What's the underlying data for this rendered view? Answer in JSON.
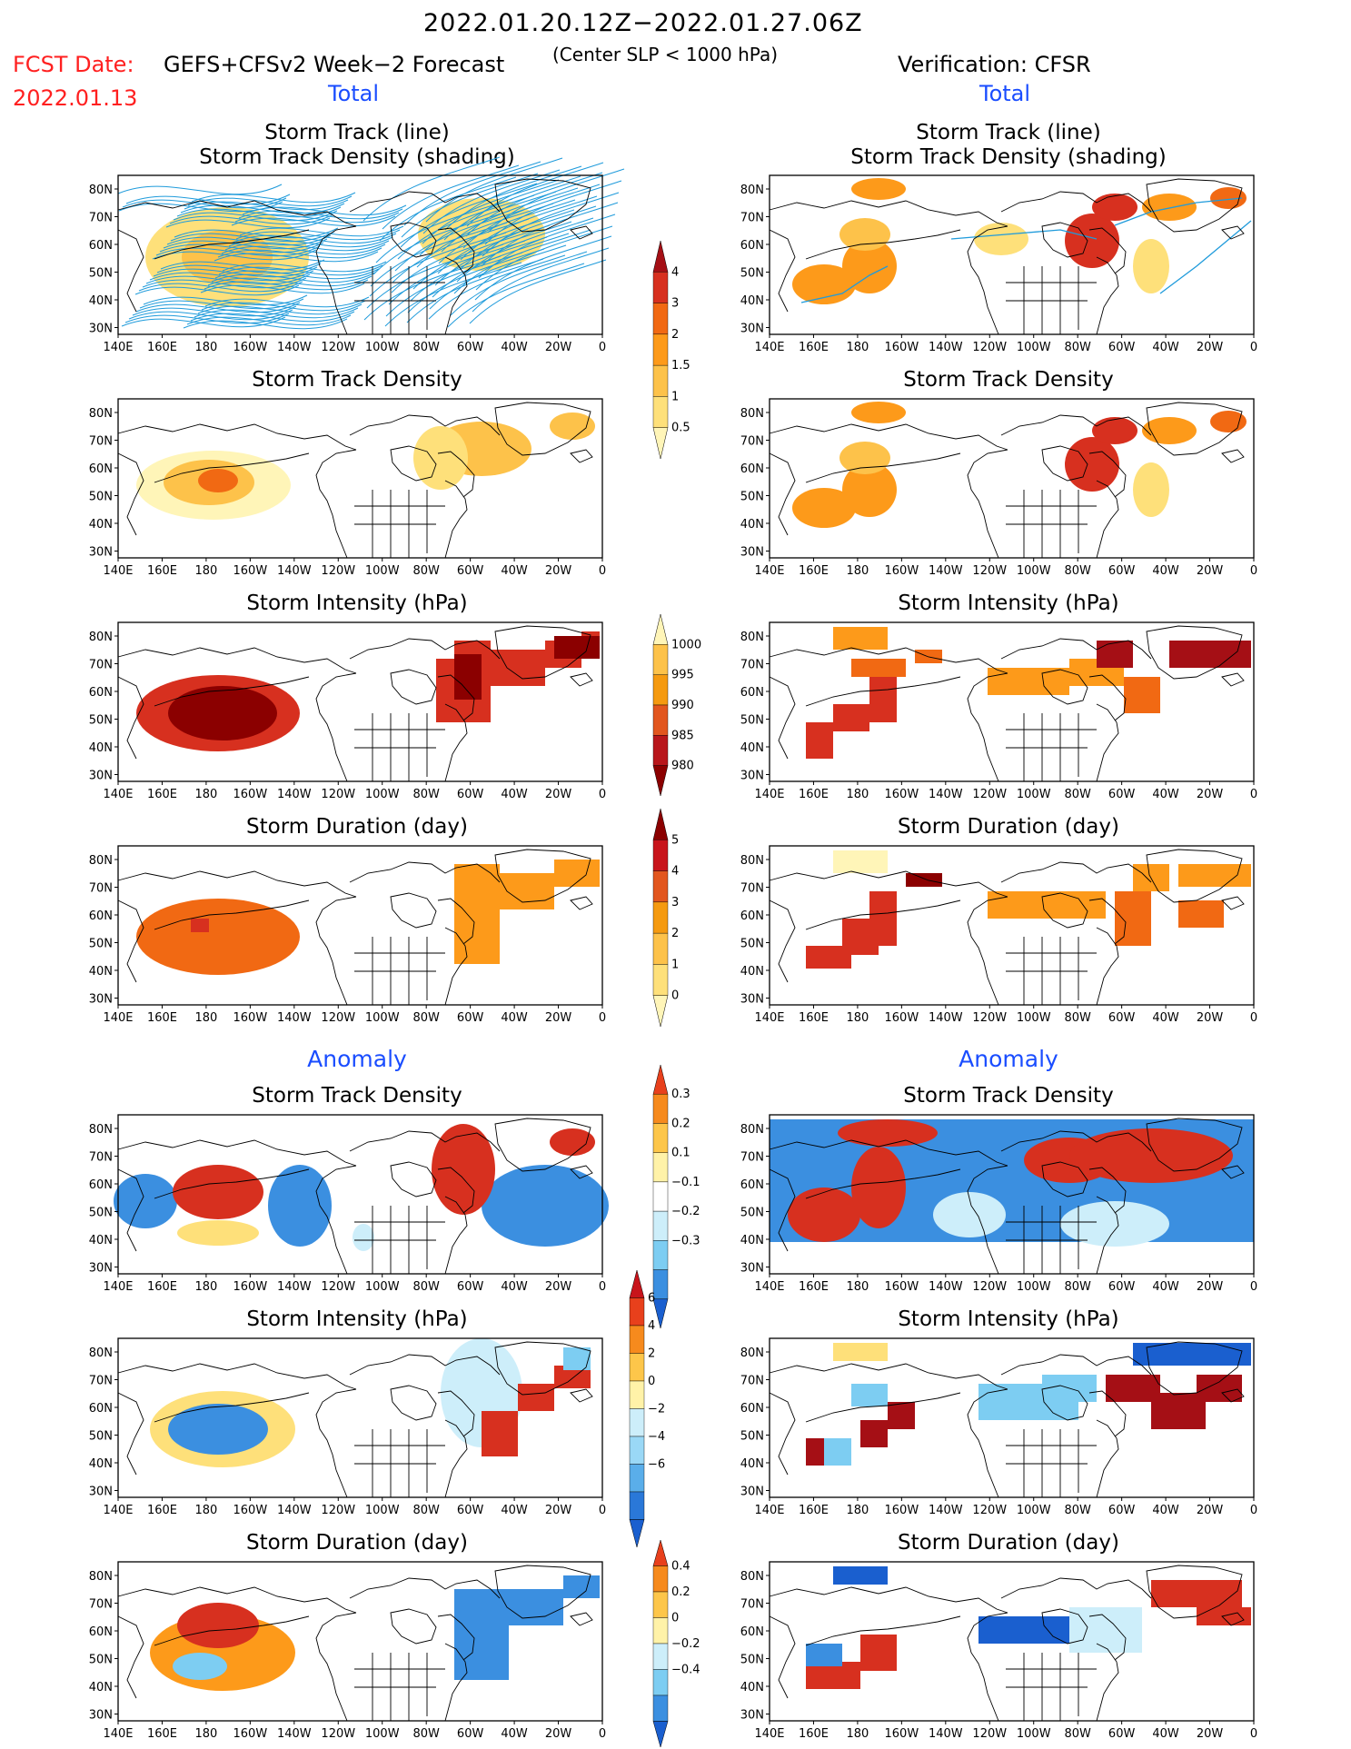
{
  "header": {
    "period": "2022.01.20.12Z−2022.01.27.06Z",
    "fcst_label": "FCST Date:",
    "fcst_date": "2022.01.13",
    "model": "GEFS+CFSv2 Week−2 Forecast",
    "criterion": "(Center SLP < 1000 hPa)",
    "verification": "Verification: CFSR"
  },
  "sections": {
    "total": "Total",
    "anomaly": "Anomaly"
  },
  "panel_titles": {
    "track": [
      "Storm Track (line)",
      "Storm Track Density (shading)"
    ],
    "density": "Storm Track Density",
    "intensity": "Storm Intensity (hPa)",
    "duration": "Storm Duration (day)"
  },
  "axes": {
    "lat_labels": [
      "80N",
      "70N",
      "60N",
      "50N",
      "40N",
      "30N"
    ],
    "lon_labels": [
      "140E",
      "160E",
      "180",
      "160W",
      "140W",
      "120W",
      "100W",
      "80W",
      "60W",
      "40W",
      "20W",
      "0"
    ]
  },
  "colorbars": {
    "density_total": {
      "labels": [
        "4",
        "3",
        "2",
        "1.5",
        "1",
        "0.5"
      ],
      "colors": [
        "#a50f15",
        "#d7301f",
        "#f16913",
        "#fd9a1a",
        "#fdc24a",
        "#fee07a",
        "#fff5b8"
      ]
    },
    "intensity_total": {
      "labels": [
        "1000",
        "995",
        "990",
        "985",
        "980"
      ],
      "colors": [
        "#fff5b8",
        "#fdc24a",
        "#f59a10",
        "#e2561e",
        "#b8161b",
        "#8b0000"
      ]
    },
    "duration_total": {
      "labels": [
        "5",
        "4",
        "3",
        "2",
        "1",
        "0"
      ],
      "colors": [
        "#8b0000",
        "#c8141b",
        "#e2561e",
        "#f59a10",
        "#fdc24a",
        "#fee07a",
        "#fff5b8"
      ]
    },
    "density_anom": {
      "labels": [
        "0.3",
        "0.2",
        "0.1",
        "−0.1",
        "−0.2",
        "−0.3"
      ],
      "colors": [
        "#e8401c",
        "#f68a1d",
        "#fdc64a",
        "#fff2a8",
        "#ffffff",
        "#cdeefa",
        "#7dcdf2",
        "#3b8fe0",
        "#1a5fcf"
      ]
    },
    "intensity_anom": {
      "labels": [
        "6",
        "4",
        "2",
        "0",
        "−2",
        "−4",
        "−6"
      ],
      "colors": [
        "#c8141b",
        "#e8401c",
        "#f68a1d",
        "#fdc64a",
        "#fff2a8",
        "#cdeefa",
        "#9ad8f6",
        "#5aaeea",
        "#2a78d8",
        "#1a5fcf"
      ]
    },
    "duration_anom": {
      "labels": [
        "0.4",
        "0.2",
        "0",
        "−0.2",
        "−0.4"
      ],
      "colors": [
        "#e8401c",
        "#f68a1d",
        "#fdc64a",
        "#fff2a8",
        "#cdeefa",
        "#7dcdf2",
        "#3b8fe0",
        "#1a5fcf"
      ]
    }
  },
  "colors": {
    "track_line": "#1f9bdb",
    "map_outline": "#000000"
  }
}
